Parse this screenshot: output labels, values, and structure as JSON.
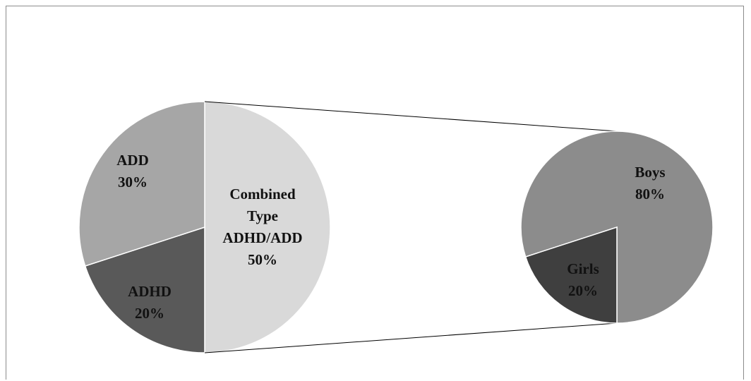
{
  "chart_data": {
    "type": "pie",
    "title": "",
    "main_pie": {
      "slices": [
        {
          "label": "Combined Type ADHD/ADD",
          "label_lines": [
            "Combined",
            "Type",
            "ADHD/ADD"
          ],
          "value": 50,
          "value_text": "50%",
          "color": "#d9d9d9"
        },
        {
          "label": "ADHD",
          "label_lines": [
            "ADHD"
          ],
          "value": 20,
          "value_text": "20%",
          "color": "#595959"
        },
        {
          "label": "ADD",
          "label_lines": [
            "ADD"
          ],
          "value": 30,
          "value_text": "30%",
          "color": "#a6a6a6"
        }
      ]
    },
    "secondary_pie": {
      "exploded_from": "Combined Type ADHD/ADD",
      "slices": [
        {
          "label": "Boys",
          "label_lines": [
            "Boys"
          ],
          "value": 80,
          "value_text": "80%",
          "color": "#8c8c8c"
        },
        {
          "label": "Girls",
          "label_lines": [
            "Girls"
          ],
          "value": 20,
          "value_text": "20%",
          "color": "#3f3f3f"
        }
      ]
    },
    "legend": "none"
  }
}
